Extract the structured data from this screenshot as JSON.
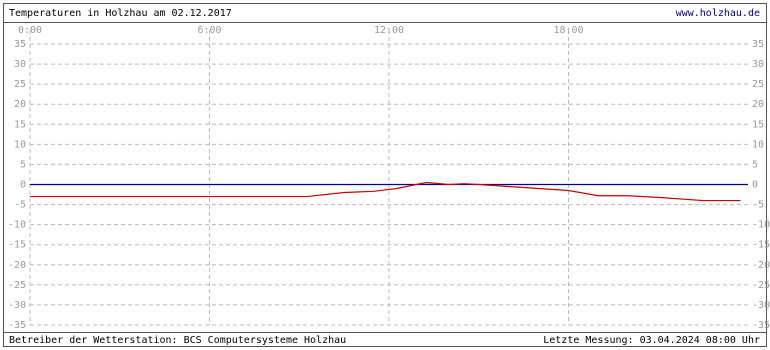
{
  "chart_data": {
    "type": "line",
    "title": "Temperaturen in Holzhau am 02.12.2017",
    "link": "www.holzhau.de",
    "footer_left": "Betreiber der Wetterstation: BCS Computersysteme Holzhau",
    "footer_right": "Letzte Messung: 03.04.2024 08:00 Uhr",
    "xlim": [
      0,
      24
    ],
    "xticks": [
      {
        "value": 0,
        "label": "0:00"
      },
      {
        "value": 6,
        "label": "6:00"
      },
      {
        "value": 12,
        "label": "12:00"
      },
      {
        "value": 18,
        "label": "18:00"
      }
    ],
    "ylim": [
      -35,
      35
    ],
    "yticks": [
      -35,
      -30,
      -25,
      -20,
      -15,
      -10,
      -5,
      0,
      5,
      10,
      15,
      20,
      25,
      30,
      35
    ],
    "grid": true,
    "series": [
      {
        "color": "#000080",
        "x": [
          0,
          24
        ],
        "values": [
          0,
          0
        ]
      },
      {
        "color": "#cc0000",
        "x": [
          0,
          9.25,
          10.5,
          11.5,
          12.25,
          13.25,
          14,
          14.5,
          15,
          16,
          18,
          19,
          20,
          21,
          22.5,
          23.75
        ],
        "values": [
          -3,
          -3,
          -2,
          -1.7,
          -1,
          0.5,
          0,
          0.2,
          0,
          -0.5,
          -1.5,
          -2.8,
          -2.8,
          -3.2,
          -4,
          -4
        ]
      }
    ]
  }
}
